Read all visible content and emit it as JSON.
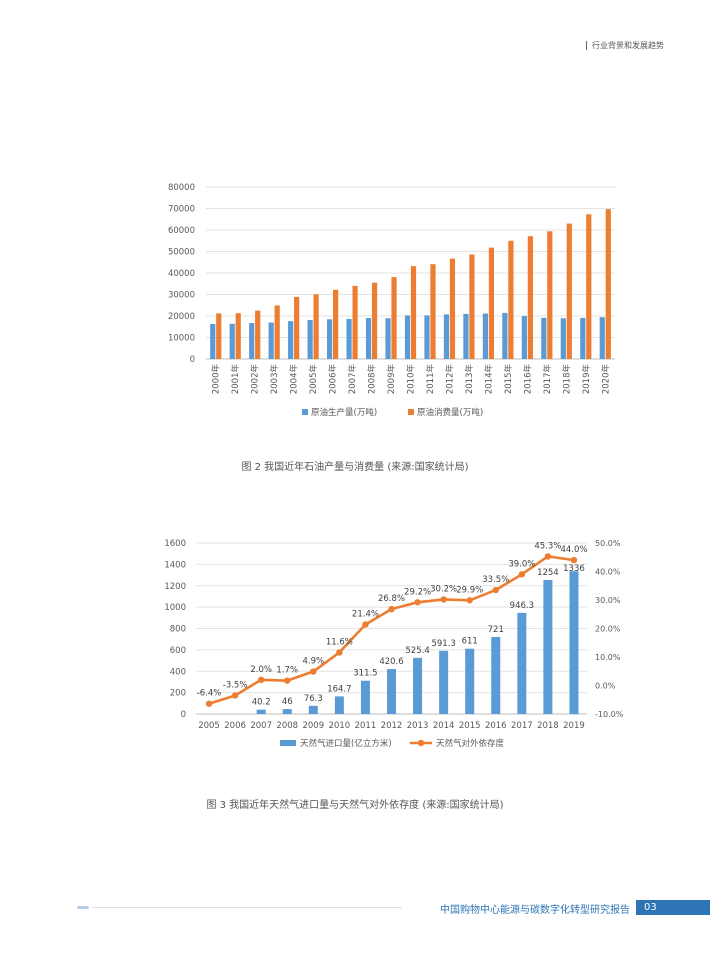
{
  "header": {
    "section_title": "行业背景和发展趋势"
  },
  "figure2": {
    "caption": "图 2  我国近年石油产量与消费量 (来源:国家统计局)",
    "chart_data": {
      "type": "bar",
      "categories": [
        "2000年",
        "2001年",
        "2002年",
        "2003年",
        "2004年",
        "2005年",
        "2006年",
        "2007年",
        "2008年",
        "2009年",
        "2010年",
        "2011年",
        "2012年",
        "2013年",
        "2014年",
        "2015年",
        "2016年",
        "2017年",
        "2018年",
        "2019年",
        "2020年"
      ],
      "series": [
        {
          "name": "原油生产量(万吨)",
          "color": "#5b9bd5",
          "values": [
            16300,
            16400,
            16700,
            16960,
            17590,
            18135,
            18477,
            18632,
            19044,
            18949,
            20301,
            20288,
            20748,
            20992,
            21143,
            21456,
            19969,
            19151,
            18932,
            19101,
            19477
          ]
        },
        {
          "name": "原油消费量(万吨)",
          "color": "#ed7d31",
          "values": [
            21200,
            21300,
            22500,
            24900,
            28900,
            30100,
            32200,
            34000,
            35500,
            38100,
            43200,
            44100,
            46700,
            48600,
            51800,
            55000,
            57100,
            59400,
            63000,
            67300,
            69700
          ]
        }
      ],
      "yticks": [
        "0",
        "10000",
        "20000",
        "30000",
        "40000",
        "50000",
        "60000",
        "70000",
        "80000"
      ],
      "ylim": [
        0,
        80000
      ],
      "grid": true,
      "legend_position": "bottom"
    }
  },
  "figure3": {
    "caption": "图 3 我国近年天然气进口量与天然气对外依存度 (来源:国家统计局)",
    "chart_data": {
      "type": "bar+line",
      "categories": [
        "2005",
        "2006",
        "2007",
        "2008",
        "2009",
        "2010",
        "2011",
        "2012",
        "2013",
        "2014",
        "2015",
        "2016",
        "2017",
        "2018",
        "2019"
      ],
      "bars": {
        "name": "天然气进口量(亿立方米)",
        "color": "#5b9bd5",
        "values": [
          0,
          0,
          40.2,
          46,
          76.3,
          164.7,
          311.5,
          420.6,
          525.4,
          591.3,
          611,
          721,
          946.3,
          1254,
          1336
        ],
        "labels": [
          "",
          "",
          "40.2",
          "46",
          "76.3",
          "164.7",
          "311.5",
          "420.6",
          "525.4",
          "591.3",
          "611",
          "721",
          "946.3",
          "1254",
          "1336"
        ]
      },
      "line": {
        "name": "天然气对外依存度",
        "color": "#ed7d31",
        "values": [
          -6.4,
          -3.5,
          2.0,
          1.7,
          4.9,
          11.6,
          21.4,
          26.8,
          29.2,
          30.2,
          29.9,
          33.5,
          39.0,
          45.3,
          44.0
        ],
        "labels": [
          "-6.4%",
          "-3.5%",
          "2.0%",
          "1.7%",
          "4.9%",
          "11.6%",
          "21.4%",
          "26.8%",
          "29.2%",
          "30.2%",
          "29.9%",
          "33.5%",
          "39.0%",
          "45.3%",
          "44.0%"
        ]
      },
      "yticks_left": [
        "0",
        "200",
        "400",
        "600",
        "800",
        "1000",
        "1200",
        "1400",
        "1600"
      ],
      "ylim_left": [
        0,
        1600
      ],
      "yticks_right": [
        "-10.0%",
        "0.0%",
        "10.0%",
        "20.0%",
        "30.0%",
        "40.0%",
        "50.0%"
      ],
      "ylim_right": [
        -10,
        50
      ],
      "grid": true,
      "legend_position": "bottom"
    }
  },
  "footer": {
    "report_title": "中国购物中心能源与碳数字化转型研究报告",
    "page_number": "03"
  }
}
